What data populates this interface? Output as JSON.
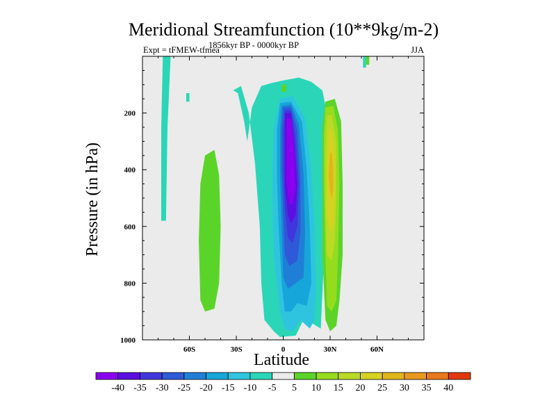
{
  "chart_data": {
    "type": "heatmap",
    "title": "Meridional Streamfunction (10**9kg/m-2)",
    "left_subtitle": "Expt = tFMEW-tfmea",
    "center_subtitle": "1856kyr BP - 0000kyr BP",
    "right_subtitle": "JJA",
    "xlabel": "Latitude",
    "ylabel": "Pressure (in hPa)",
    "xlim": [
      -90,
      90
    ],
    "ylim": [
      1000,
      0
    ],
    "x_ticks": [
      {
        "value": -60,
        "label": "60S"
      },
      {
        "value": -30,
        "label": "30S"
      },
      {
        "value": 0,
        "label": "0"
      },
      {
        "value": 30,
        "label": "30N"
      },
      {
        "value": 60,
        "label": "60N"
      }
    ],
    "y_ticks": [
      {
        "value": 200,
        "label": "200"
      },
      {
        "value": 400,
        "label": "400"
      },
      {
        "value": 600,
        "label": "600"
      },
      {
        "value": 800,
        "label": "800"
      },
      {
        "value": 1000,
        "label": "1000"
      }
    ],
    "colorbar": {
      "labels": [
        "-40",
        "-35",
        "-30",
        "-25",
        "-20",
        "-15",
        "-10",
        "-5",
        "5",
        "10",
        "15",
        "20",
        "25",
        "30",
        "35",
        "40"
      ],
      "colors": [
        "#8a00ee",
        "#5a10e0",
        "#3f37dd",
        "#2f59d6",
        "#1f7fd6",
        "#16a6d9",
        "#2ec4e0",
        "#2ad6b7",
        "#ebebeb",
        "#5bd42a",
        "#96dc1e",
        "#bada26",
        "#d6d221",
        "#e0b51a",
        "#e79a1e",
        "#e8781c",
        "#e0380d"
      ]
    },
    "contour_regions": [
      {
        "level": "-5",
        "color": "#2ad6b7",
        "polygon": [
          [
            -77,
            0
          ],
          [
            -72,
            0
          ],
          [
            -74,
            250
          ],
          [
            -75,
            580
          ],
          [
            -78,
            580
          ],
          [
            -78,
            250
          ]
        ]
      },
      {
        "level": "-5",
        "color": "#2ad6b7",
        "polygon": [
          [
            -32,
            120
          ],
          [
            -27,
            105
          ],
          [
            -22,
            200
          ],
          [
            -18,
            380
          ],
          [
            -15,
            600
          ],
          [
            -14,
            800
          ],
          [
            -12,
            930
          ],
          [
            -6,
            970
          ],
          [
            -2,
            990
          ],
          [
            8,
            985
          ],
          [
            12,
            940
          ],
          [
            15,
            900
          ],
          [
            18,
            940
          ],
          [
            24,
            960
          ],
          [
            27,
            600
          ],
          [
            28,
            200
          ],
          [
            25,
            120
          ],
          [
            18,
            90
          ],
          [
            10,
            75
          ],
          [
            0,
            85
          ],
          [
            -8,
            95
          ],
          [
            -14,
            105
          ],
          [
            -20,
            180
          ],
          [
            -23,
            300
          ],
          [
            -25,
            230
          ],
          [
            -29,
            130
          ]
        ]
      },
      {
        "level": "-5",
        "color": "#2ad6b7",
        "polygon": [
          [
            51,
            0
          ],
          [
            53,
            0
          ],
          [
            53,
            40
          ],
          [
            51,
            40
          ]
        ]
      },
      {
        "level": "-5",
        "color": "#2ad6b7",
        "polygon": [
          [
            -62,
            130
          ],
          [
            -60,
            130
          ],
          [
            -60,
            160
          ],
          [
            -62,
            160
          ]
        ]
      },
      {
        "level": "-10",
        "color": "#2ec4e0",
        "polygon": [
          [
            -2,
            150
          ],
          [
            6,
            140
          ],
          [
            14,
            220
          ],
          [
            18,
            400
          ],
          [
            20,
            600
          ],
          [
            21,
            820
          ],
          [
            20,
            930
          ],
          [
            17,
            960
          ],
          [
            11,
            930
          ],
          [
            6,
            970
          ],
          [
            1,
            960
          ],
          [
            -2,
            900
          ],
          [
            -6,
            700
          ],
          [
            -7,
            450
          ],
          [
            -6,
            250
          ]
        ]
      },
      {
        "level": "-15",
        "color": "#16a6d9",
        "polygon": [
          [
            -2,
            165
          ],
          [
            5,
            160
          ],
          [
            12,
            230
          ],
          [
            15,
            400
          ],
          [
            17,
            600
          ],
          [
            18,
            800
          ],
          [
            15,
            880
          ],
          [
            9,
            870
          ],
          [
            5,
            900
          ],
          [
            1,
            900
          ],
          [
            -1,
            800
          ],
          [
            -3,
            600
          ],
          [
            -4,
            420
          ],
          [
            -4,
            260
          ]
        ]
      },
      {
        "level": "-20",
        "color": "#1f7fd6",
        "polygon": [
          [
            -1,
            175
          ],
          [
            5,
            170
          ],
          [
            10,
            240
          ],
          [
            13,
            420
          ],
          [
            14,
            620
          ],
          [
            13,
            780
          ],
          [
            8,
            800
          ],
          [
            3,
            820
          ],
          [
            0,
            780
          ],
          [
            -1,
            600
          ],
          [
            -2,
            420
          ],
          [
            -2,
            260
          ]
        ]
      },
      {
        "level": "-25",
        "color": "#2f59d6",
        "polygon": [
          [
            0,
            180
          ],
          [
            5,
            180
          ],
          [
            9,
            260
          ],
          [
            11,
            440
          ],
          [
            11,
            620
          ],
          [
            9,
            720
          ],
          [
            4,
            740
          ],
          [
            1,
            700
          ],
          [
            0,
            560
          ],
          [
            -1,
            400
          ],
          [
            -1,
            260
          ]
        ]
      },
      {
        "level": "-30",
        "color": "#3f37dd",
        "polygon": [
          [
            1,
            190
          ],
          [
            5,
            190
          ],
          [
            8,
            280
          ],
          [
            10,
            450
          ],
          [
            9,
            600
          ],
          [
            6,
            660
          ],
          [
            3,
            640
          ],
          [
            1,
            540
          ],
          [
            0,
            400
          ],
          [
            0,
            270
          ]
        ]
      },
      {
        "level": "-35",
        "color": "#5a10e0",
        "polygon": [
          [
            1,
            200
          ],
          [
            5,
            200
          ],
          [
            7,
            300
          ],
          [
            9,
            450
          ],
          [
            8,
            560
          ],
          [
            5,
            590
          ],
          [
            3,
            560
          ],
          [
            1,
            460
          ],
          [
            1,
            320
          ]
        ]
      },
      {
        "level": "-40",
        "color": "#8a00ee",
        "polygon": [
          [
            2,
            220
          ],
          [
            5,
            220
          ],
          [
            7,
            330
          ],
          [
            8,
            460
          ],
          [
            6,
            520
          ],
          [
            4,
            520
          ],
          [
            2,
            440
          ],
          [
            2,
            320
          ]
        ]
      },
      {
        "level": "5",
        "color": "#5bd42a",
        "polygon": [
          [
            -50,
            350
          ],
          [
            -44,
            330
          ],
          [
            -41,
            420
          ],
          [
            -40,
            600
          ],
          [
            -41,
            800
          ],
          [
            -44,
            890
          ],
          [
            -50,
            900
          ],
          [
            -53,
            860
          ],
          [
            -54,
            650
          ],
          [
            -53,
            450
          ]
        ]
      },
      {
        "level": "5",
        "color": "#5bd42a",
        "polygon": [
          [
            27,
            160
          ],
          [
            33,
            150
          ],
          [
            37,
            230
          ],
          [
            38,
            450
          ],
          [
            38,
            700
          ],
          [
            36,
            860
          ],
          [
            34,
            950
          ],
          [
            30,
            970
          ],
          [
            27,
            930
          ],
          [
            25,
            700
          ],
          [
            25,
            400
          ],
          [
            25,
            250
          ]
        ]
      },
      {
        "level": "5",
        "color": "#5bd42a",
        "polygon": [
          [
            -1,
            100
          ],
          [
            2,
            100
          ],
          [
            2,
            125
          ],
          [
            -1,
            125
          ]
        ]
      },
      {
        "level": "5",
        "color": "#5bd42a",
        "polygon": [
          [
            53,
            0
          ],
          [
            55,
            0
          ],
          [
            55,
            30
          ],
          [
            53,
            30
          ]
        ]
      },
      {
        "level": "10",
        "color": "#96dc1e",
        "polygon": [
          [
            27,
            180
          ],
          [
            32,
            175
          ],
          [
            35,
            260
          ],
          [
            36,
            450
          ],
          [
            35,
            700
          ],
          [
            34,
            860
          ],
          [
            31,
            900
          ],
          [
            28,
            880
          ],
          [
            27,
            700
          ],
          [
            26,
            450
          ],
          [
            26,
            280
          ]
        ]
      },
      {
        "level": "15",
        "color": "#bada26",
        "polygon": [
          [
            28,
            210
          ],
          [
            31,
            205
          ],
          [
            34,
            300
          ],
          [
            34,
            480
          ],
          [
            33,
            650
          ],
          [
            31,
            720
          ],
          [
            28,
            700
          ],
          [
            27,
            520
          ],
          [
            27,
            330
          ]
        ]
      },
      {
        "level": "20",
        "color": "#d6d221",
        "polygon": [
          [
            29,
            260
          ],
          [
            31,
            255
          ],
          [
            33,
            350
          ],
          [
            33,
            500
          ],
          [
            32,
            600
          ],
          [
            30,
            620
          ],
          [
            28,
            560
          ],
          [
            28,
            400
          ]
        ]
      },
      {
        "level": "25",
        "color": "#e0b51a",
        "polygon": [
          [
            30,
            340
          ],
          [
            31,
            340
          ],
          [
            32,
            400
          ],
          [
            32,
            470
          ],
          [
            31,
            500
          ],
          [
            30,
            480
          ],
          [
            29,
            420
          ]
        ]
      }
    ]
  }
}
